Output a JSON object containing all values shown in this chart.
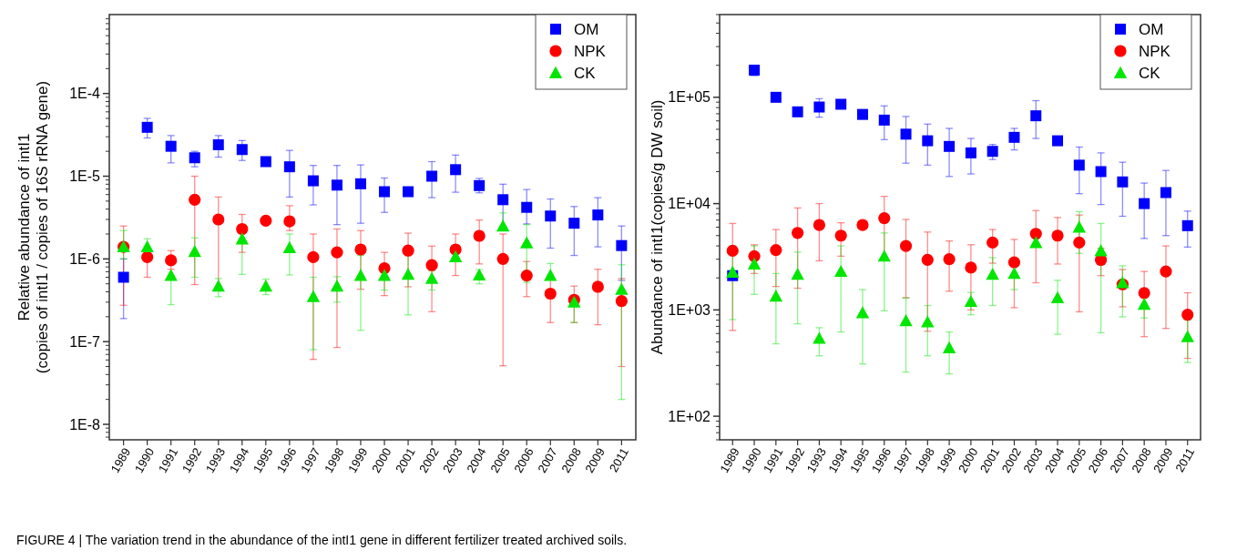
{
  "chart_data": [
    {
      "type": "scatter",
      "ylabel": "Relative abundance of intI1\n(copies of intI1 / copies of 16S rRNA gene)",
      "log": "y",
      "legend": "top right",
      "ylim": [
        6.5e-09,
        0.0009
      ],
      "yticks": [
        {
          "value": 1e-08,
          "label": "1E-8"
        },
        {
          "value": 1e-07,
          "label": "1E-7"
        },
        {
          "value": 1e-06,
          "label": "1E-6"
        },
        {
          "value": 1e-05,
          "label": "1E-5"
        },
        {
          "value": 0.0001,
          "label": "1E-4"
        }
      ],
      "categories": [
        "1989",
        "1990",
        "1991",
        "1992",
        "1993",
        "1994",
        "1995",
        "1996",
        "1997",
        "1998",
        "1999",
        "2000",
        "2001",
        "2002",
        "2003",
        "2004",
        "2005",
        "2006",
        "2007",
        "2008",
        "2009",
        "2011"
      ],
      "annotations": [
        "FIGURE 4 | The variation trend in the abundance of the intI1 gene in different fertilizer treated archived soils."
      ],
      "series": [
        {
          "name": "OM",
          "color": "#0000ff",
          "marker": "square",
          "values": [
            6e-07,
            3.9e-05,
            2.3e-05,
            1.67e-05,
            2.4e-05,
            2.1e-05,
            1.5e-05,
            1.3e-05,
            8.8e-06,
            7.8e-06,
            8.1e-06,
            6.5e-06,
            6.5e-06,
            1e-05,
            1.2e-05,
            7.7e-06,
            5.2e-06,
            4.2e-06,
            3.3e-06,
            2.7e-06,
            3.4e-06,
            1.45e-06
          ],
          "errors": [
            [
              1.9e-07,
              1e-06
            ],
            [
              2.9e-05,
              5e-05
            ],
            [
              1.45e-05,
              3.1e-05
            ],
            [
              1.3e-05,
              2e-05
            ],
            [
              1.7e-05,
              3.1e-05
            ],
            [
              1.55e-05,
              2.7e-05
            ],
            null,
            [
              5.6e-06,
              2.05e-05
            ],
            [
              4.5e-06,
              1.35e-05
            ],
            [
              2.6e-06,
              1.35e-05
            ],
            [
              2.7e-06,
              1.37e-05
            ],
            [
              3.65e-06,
              9.5e-06
            ],
            null,
            [
              5.5e-06,
              1.5e-05
            ],
            [
              6.4e-06,
              1.8e-05
            ],
            [
              6.3e-06,
              9.4e-06
            ],
            [
              2.45e-06,
              8e-06
            ],
            [
              2.65e-06,
              6.9e-06
            ],
            [
              1.35e-06,
              5.3e-06
            ],
            [
              1.1e-06,
              4.3e-06
            ],
            [
              1.4e-06,
              5.5e-06
            ],
            [
              5.5e-07,
              2.5e-06
            ]
          ]
        },
        {
          "name": "NPK",
          "color": "#ff0000",
          "marker": "circle",
          "values": [
            1.4e-06,
            1.05e-06,
            9.6e-07,
            5.2e-06,
            3e-06,
            2.3e-06,
            2.9e-06,
            2.85e-06,
            1.05e-06,
            1.2e-06,
            1.3e-06,
            7.7e-07,
            1.26e-06,
            8.4e-07,
            1.3e-06,
            1.9e-06,
            1e-06,
            6.3e-07,
            3.8e-07,
            3.2e-07,
            4.6e-07,
            3.1e-07
          ],
          "errors": [
            [
              2.75e-07,
              2.5e-06
            ],
            [
              6e-07,
              1.05e-06
            ],
            [
              7.5e-07,
              1.26e-06
            ],
            [
              4.9e-07,
              1e-05
            ],
            [
              4.6e-07,
              5.6e-06
            ],
            [
              1.2e-06,
              3.45e-06
            ],
            null,
            [
              2.2e-06,
              4.4e-06
            ],
            [
              6.1e-08,
              2e-06
            ],
            [
              8.5e-08,
              2.3e-06
            ],
            [
              4.3e-07,
              2.2e-06
            ],
            [
              3.6e-07,
              1.2e-06
            ],
            [
              4.6e-07,
              2.05e-06
            ],
            [
              2.3e-07,
              1.43e-06
            ],
            [
              6.3e-07,
              2e-06
            ],
            [
              8.7e-07,
              2.95e-06
            ],
            [
              5.1e-08,
              2e-06
            ],
            [
              3.5e-07,
              9.3e-07
            ],
            [
              1.7e-07,
              5.8e-07
            ],
            [
              1.7e-07,
              4.7e-07
            ],
            [
              1.6e-07,
              7.5e-07
            ],
            [
              5e-08,
              5.8e-07
            ]
          ]
        },
        {
          "name": "CK",
          "color": "#00e600",
          "marker": "triangle",
          "values": [
            1.4e-06,
            1.4e-06,
            6.3e-07,
            1.23e-06,
            4.7e-07,
            1.74e-06,
            4.7e-07,
            1.37e-06,
            3.5e-07,
            4.7e-07,
            6.3e-07,
            6.3e-07,
            6.5e-07,
            5.8e-07,
            1.06e-06,
            6.4e-07,
            2.5e-06,
            1.56e-06,
            6.3e-07,
            3e-07,
            null,
            4.3e-07
          ],
          "errors": [
            [
              1e-06,
              2.2e-06
            ],
            [
              1.2e-06,
              1.75e-06
            ],
            [
              2.8e-07,
              6.3e-07
            ],
            [
              6e-07,
              1.8e-06
            ],
            [
              3.5e-07,
              5.8e-07
            ],
            [
              6.5e-07,
              2.6e-06
            ],
            [
              3.7e-07,
              5.7e-07
            ],
            [
              6.4e-07,
              2e-06
            ],
            [
              8e-08,
              6e-07
            ],
            [
              3e-07,
              6.1e-07
            ],
            [
              1.37e-07,
              1.1e-06
            ],
            [
              4.2e-07,
              8e-07
            ],
            [
              2.1e-07,
              1.1e-06
            ],
            [
              4.2e-07,
              7.2e-07
            ],
            null,
            [
              5e-07,
              7.4e-07
            ],
            [
              2.5e-06,
              3.6e-06
            ],
            [
              5.2e-07,
              2.6e-06
            ],
            [
              5.6e-07,
              8.8e-07
            ],
            [
              1.7e-07,
              3.5e-07
            ],
            null,
            [
              2e-08,
              8.5e-07
            ]
          ]
        }
      ]
    },
    {
      "type": "scatter",
      "ylabel": "Abundance of intI1(copies/g DW soil)",
      "log": "y",
      "legend": "top right",
      "ylim": [
        60,
        600000.0
      ],
      "yticks": [
        {
          "value": 100,
          "label": "1E+02"
        },
        {
          "value": 1000,
          "label": "1E+03"
        },
        {
          "value": 10000,
          "label": "1E+04"
        },
        {
          "value": 100000,
          "label": "1E+05"
        }
      ],
      "categories": [
        "1989",
        "1990",
        "1991",
        "1992",
        "1993",
        "1994",
        "1995",
        "1996",
        "1997",
        "1998",
        "1999",
        "2000",
        "2001",
        "2002",
        "2003",
        "2004",
        "2005",
        "2006",
        "2007",
        "2008",
        "2009",
        "2011"
      ],
      "series": [
        {
          "name": "OM",
          "color": "#0000ff",
          "marker": "square",
          "values": [
            2100.0,
            180000.0,
            100000.0,
            73000.0,
            81000.0,
            86000.0,
            69000.0,
            61000.0,
            45000.0,
            39000.0,
            34500.0,
            30000.0,
            31000.0,
            42000.0,
            67000.0,
            39000.0,
            23000.0,
            20000.0,
            16000.0,
            10000.0,
            12700.0,
            6200.0
          ],
          "errors": [
            null,
            [
              160000.0,
              200000.0
            ],
            null,
            null,
            [
              65000.0,
              97000.0
            ],
            null,
            null,
            [
              40000.0,
              83000.0
            ],
            [
              24000.0,
              66000.0
            ],
            [
              23000.0,
              56000.0
            ],
            [
              18000.0,
              51000.0
            ],
            [
              19000.0,
              41000.0
            ],
            [
              26000.0,
              36000.0
            ],
            [
              32000.0,
              51000.0
            ],
            [
              41000.0,
              93000.0
            ],
            null,
            [
              12400.0,
              34000.0
            ],
            [
              9800.0,
              30000.0
            ],
            [
              7600.0,
              24500.0
            ],
            [
              4700.0,
              15600.0
            ],
            [
              5000.0,
              20500.0
            ],
            [
              3900.0,
              8500.0
            ]
          ]
        },
        {
          "name": "NPK",
          "color": "#ff0000",
          "marker": "circle",
          "values": [
            3600.0,
            3200.0,
            3660.0,
            5300.0,
            6300.0,
            5000.0,
            6300.0,
            7300.0,
            4000.0,
            2960.0,
            3000.0,
            2500.0,
            4300.0,
            2800.0,
            5200.0,
            5000.0,
            4300.0,
            2950.0,
            1740.0,
            1440.0,
            2300.0,
            900.0
          ],
          "errors": [
            [
              640.0,
              6500.0
            ],
            [
              2200.0,
              4100.0
            ],
            [
              1660.0,
              5700.0
            ],
            [
              1600.0,
              9100.0
            ],
            [
              2900.0,
              10000.0
            ],
            [
              3200.0,
              6600.0
            ],
            null,
            [
              3000.0,
              11700.0
            ],
            [
              1300.0,
              7100.0
            ],
            [
              630.0,
              5400.0
            ],
            [
              1500.0,
              4450.0
            ],
            [
              1000.0,
              4100.0
            ],
            [
              2750.0,
              5700.0
            ],
            [
              1050.0,
              4600.0
            ],
            [
              1800.0,
              8600.0
            ],
            [
              2700.0,
              7400.0
            ],
            [
              960.0,
              7800.0
            ],
            [
              2100.0,
              3800.0
            ],
            [
              1070.0,
              2400.0
            ],
            [
              560.0,
              2300.0
            ],
            [
              670.0,
              4000.0
            ],
            [
              350.0,
              1450.0
            ]
          ]
        },
        {
          "name": "CK",
          "color": "#00e600",
          "marker": "triangle",
          "values": [
            2260.0,
            2700.0,
            1350.0,
            2160.0,
            540.0,
            2300.0,
            940.0,
            3200.0,
            790.0,
            770.0,
            440.0,
            1200.0,
            2160.0,
            2200.0,
            4300.0,
            1300.0,
            6000.0,
            3600.0,
            1800.0,
            1130.0,
            null,
            560.0
          ],
          "errors": [
            [
              810.0,
              4000.0
            ],
            [
              1400.0,
              4000.0
            ],
            [
              480.0,
              2200.0
            ],
            [
              740.0,
              3500.0
            ],
            [
              370.0,
              680.0
            ],
            [
              620.0,
              4000.0
            ],
            [
              310.0,
              1550.0
            ],
            [
              980.0,
              5300.0
            ],
            [
              260.0,
              1300.0
            ],
            [
              370.0,
              1100.0
            ],
            [
              250.0,
              620.0
            ],
            [
              900.0,
              1460.0
            ],
            [
              1100.0,
              3100.0
            ],
            [
              1550.0,
              3000.0
            ],
            null,
            [
              590.0,
              1900.0
            ],
            [
              3400.0,
              8400.0
            ],
            [
              610.0,
              6500.0
            ],
            [
              860.0,
              2600.0
            ],
            [
              840.0,
              1130.0
            ],
            null,
            [
              320.0,
              800.0
            ]
          ]
        }
      ]
    }
  ]
}
